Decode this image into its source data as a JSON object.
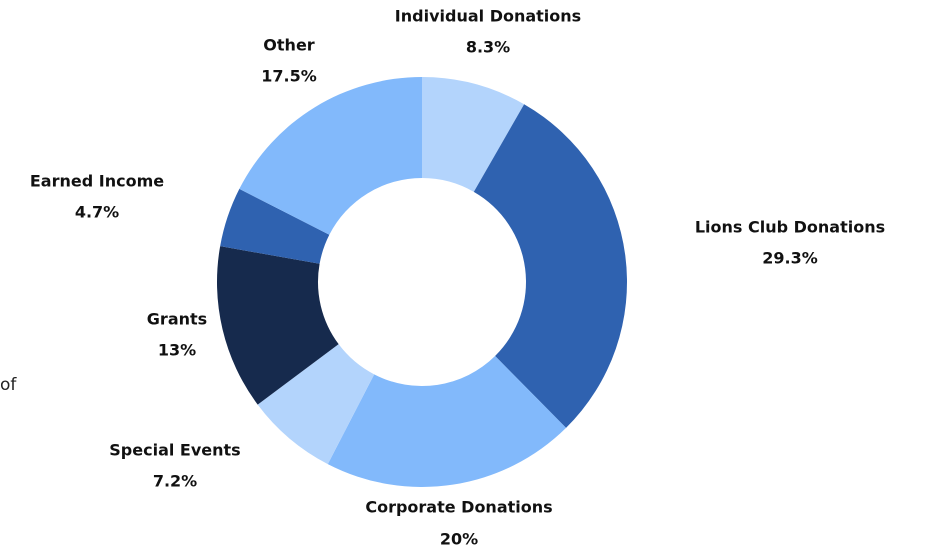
{
  "chart_data": {
    "type": "donut",
    "categories": [
      "Individual Donations",
      "Lions Club Donations",
      "Corporate Donations",
      "Special Events",
      "Grants",
      "Earned Income",
      "Other"
    ],
    "values": [
      8.3,
      29.3,
      20,
      7.2,
      13,
      4.7,
      17.5
    ],
    "value_labels": [
      "8.3%",
      "29.3%",
      "20%",
      "7.2%",
      "13%",
      "4.7%",
      "17.5%"
    ],
    "colors": [
      "#b3d4fc",
      "#2f62b0",
      "#82b9fb",
      "#b3d4fc",
      "#162a4d",
      "#2f62b0",
      "#82b9fb"
    ],
    "annotation": "of"
  }
}
